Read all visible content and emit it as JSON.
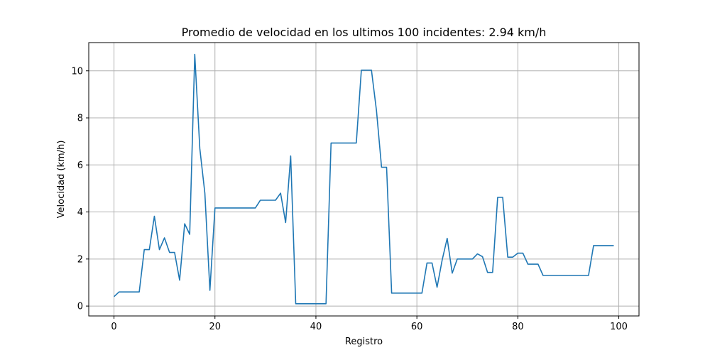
{
  "chart_data": {
    "type": "line",
    "title": "Promedio de velocidad en los ultimos 100 incidentes: 2.94 km/h",
    "xlabel": "Registro",
    "ylabel": "Velocidad (km/h)",
    "xlim": [
      -5,
      104
    ],
    "ylim": [
      -0.42,
      11.2
    ],
    "xticks": [
      0,
      20,
      40,
      60,
      80,
      100
    ],
    "yticks": [
      0,
      2,
      4,
      6,
      8,
      10
    ],
    "grid": true,
    "line_color": "#1f77b4",
    "series": [
      {
        "values": [
          0.4,
          0.6,
          0.6,
          0.6,
          0.6,
          0.6,
          2.4,
          2.4,
          3.82,
          2.4,
          2.9,
          2.28,
          2.28,
          1.1,
          3.5,
          3.05,
          10.7,
          6.7,
          4.8,
          0.67,
          4.17,
          4.17,
          4.17,
          4.17,
          4.17,
          4.17,
          4.17,
          4.17,
          4.17,
          4.5,
          4.5,
          4.5,
          4.5,
          4.8,
          3.55,
          6.38,
          0.1,
          0.1,
          0.1,
          0.1,
          0.1,
          0.1,
          0.1,
          6.93,
          6.93,
          6.93,
          6.93,
          6.93,
          6.93,
          10.03,
          10.03,
          10.03,
          8.3,
          5.9,
          5.9,
          0.55,
          0.55,
          0.55,
          0.55,
          0.55,
          0.55,
          0.55,
          1.83,
          1.83,
          0.8,
          1.95,
          2.88,
          1.4,
          2.0,
          2.0,
          2.0,
          2.0,
          2.22,
          2.1,
          1.43,
          1.43,
          4.62,
          4.62,
          2.08,
          2.08,
          2.25,
          2.25,
          1.78,
          1.78,
          1.78,
          1.3,
          1.3,
          1.3,
          1.3,
          1.3,
          1.3,
          1.3,
          1.3,
          1.3,
          1.3,
          2.57,
          2.57,
          2.57,
          2.57,
          2.57
        ]
      }
    ]
  }
}
